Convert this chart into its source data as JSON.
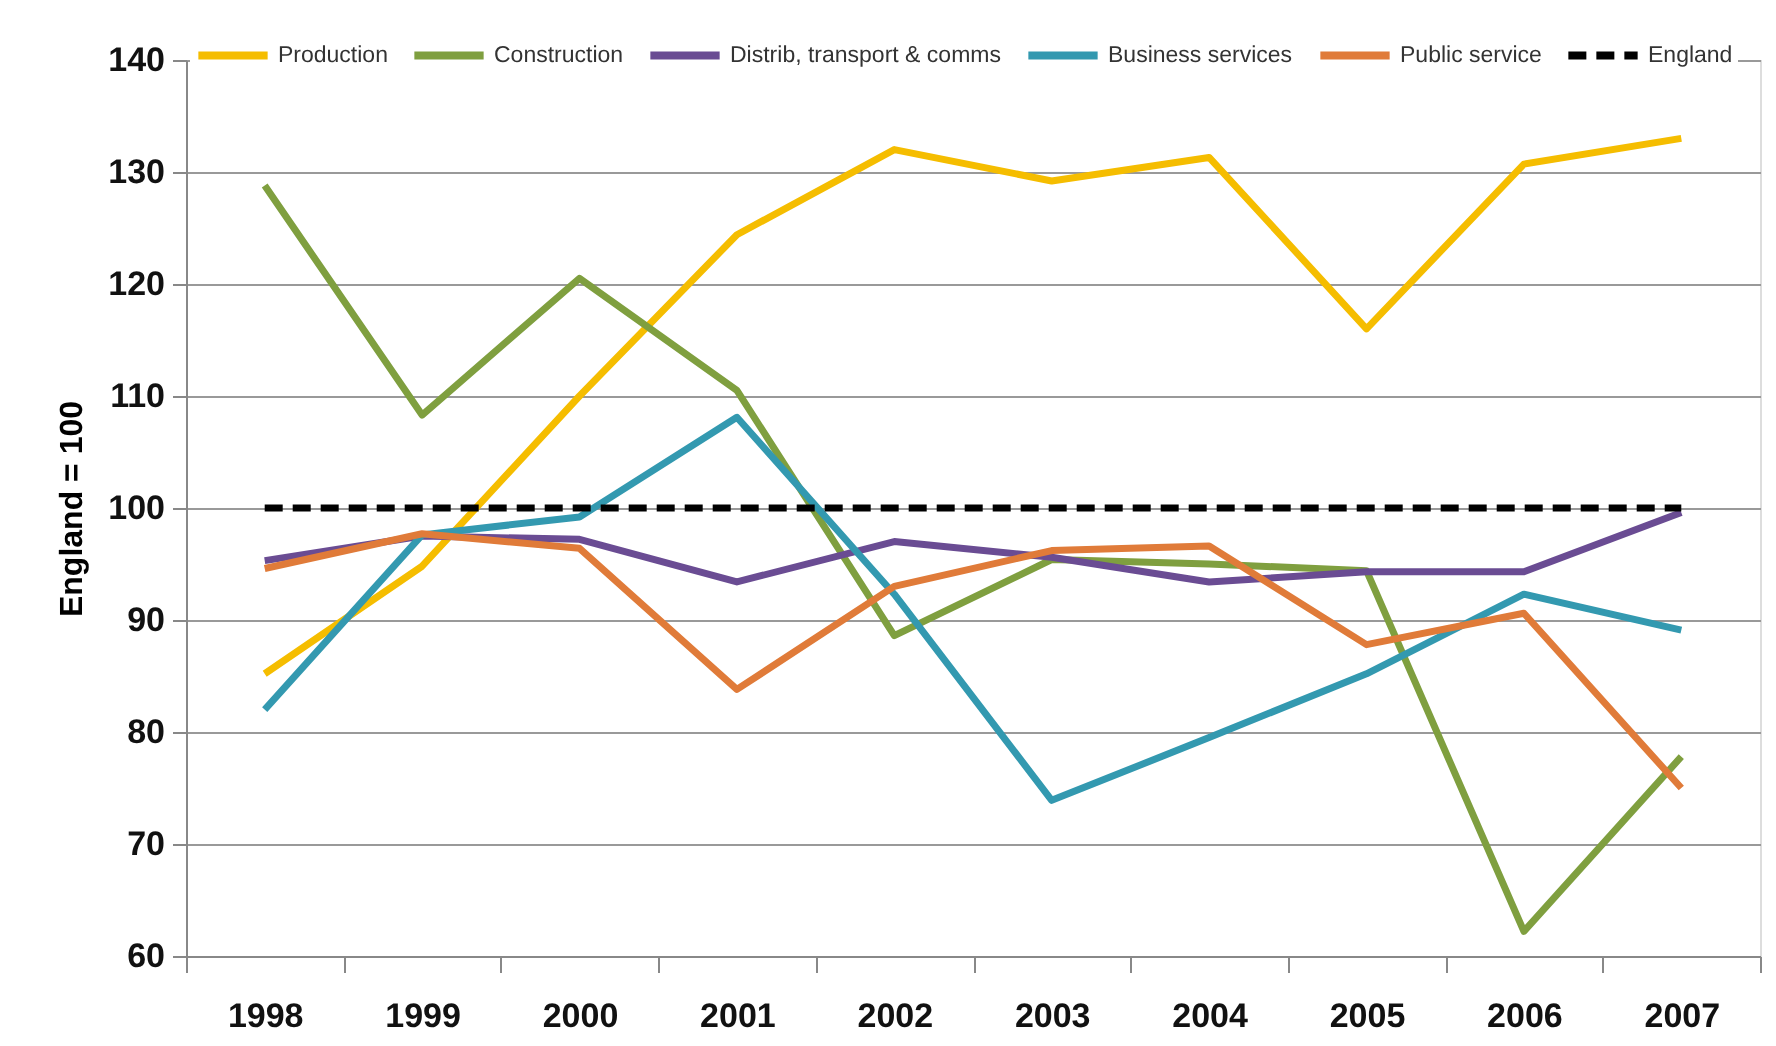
{
  "chart_data": {
    "type": "line",
    "ylabel": "England = 100",
    "categories": [
      "1998",
      "1999",
      "2000",
      "2001",
      "2002",
      "2003",
      "2004",
      "2005",
      "2006",
      "2007"
    ],
    "series": [
      {
        "name": "Production",
        "color": "#f5bd00",
        "values": [
          85.2,
          94.8,
          110,
          124.4,
          132,
          129.2,
          131.3,
          116,
          130.7,
          133
        ]
      },
      {
        "name": "Construction",
        "color": "#7f9f3f",
        "values": [
          128.8,
          108.3,
          120.5,
          110.5,
          88.6,
          95.4,
          95,
          94.4,
          62.2,
          77.8
        ]
      },
      {
        "name": "Distrib, transport & comms",
        "color": "#6a4c93",
        "values": [
          95.3,
          97.5,
          97.2,
          93.4,
          97,
          95.6,
          93.4,
          94.3,
          94.3,
          99.6
        ]
      },
      {
        "name": "Business services",
        "color": "#3399b0",
        "values": [
          82,
          97.6,
          99.2,
          108.1,
          92.3,
          73.9,
          79.5,
          85.2,
          92.3,
          89.1
        ]
      },
      {
        "name": "Public service",
        "color": "#e07b39",
        "values": [
          94.6,
          97.7,
          96.4,
          83.8,
          93,
          96.2,
          96.6,
          87.8,
          90.6,
          75
        ]
      },
      {
        "name": "England",
        "color": "#000000",
        "line_style": "dashed",
        "values": [
          100,
          100,
          100,
          100,
          100,
          100,
          100,
          100,
          100,
          100
        ]
      }
    ],
    "ylim": [
      60,
      140
    ],
    "yticks": [
      60,
      70,
      80,
      90,
      100,
      110,
      120,
      130,
      140
    ],
    "grid": "y",
    "legend": "top",
    "line_style": "solid"
  }
}
